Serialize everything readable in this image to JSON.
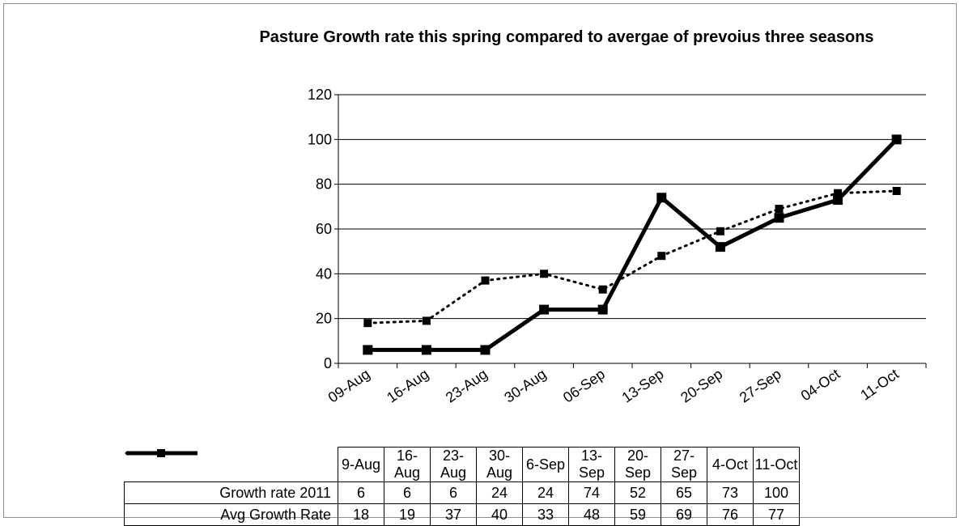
{
  "chart_data": {
    "type": "line",
    "title": "Pasture Growth rate this spring compared to avergae of prevoius three seasons",
    "categories": [
      "09-Aug",
      "16-Aug",
      "23-Aug",
      "30-Aug",
      "06-Sep",
      "13-Sep",
      "20-Sep",
      "27-Sep",
      "04-Oct",
      "11-Oct"
    ],
    "table_categories": [
      "9-Aug",
      "16-Aug",
      "23-Aug",
      "30-Aug",
      "6-Sep",
      "13-Sep",
      "20-Sep",
      "27-Sep",
      "4-Oct",
      "11-Oct"
    ],
    "series": [
      {
        "name": "Growth rate 2011",
        "values": [
          6,
          6,
          6,
          24,
          24,
          74,
          52,
          65,
          73,
          100
        ],
        "style": "solid",
        "color": "#000000"
      },
      {
        "name": "Avg Growth Rate",
        "values": [
          18,
          19,
          37,
          40,
          33,
          48,
          59,
          69,
          76,
          77
        ],
        "style": "dotted",
        "color": "#000000"
      }
    ],
    "ylim": [
      0,
      120
    ],
    "yticks": [
      0,
      20,
      40,
      60,
      80,
      100,
      120
    ],
    "grid": true,
    "legend": "data table below chart"
  }
}
